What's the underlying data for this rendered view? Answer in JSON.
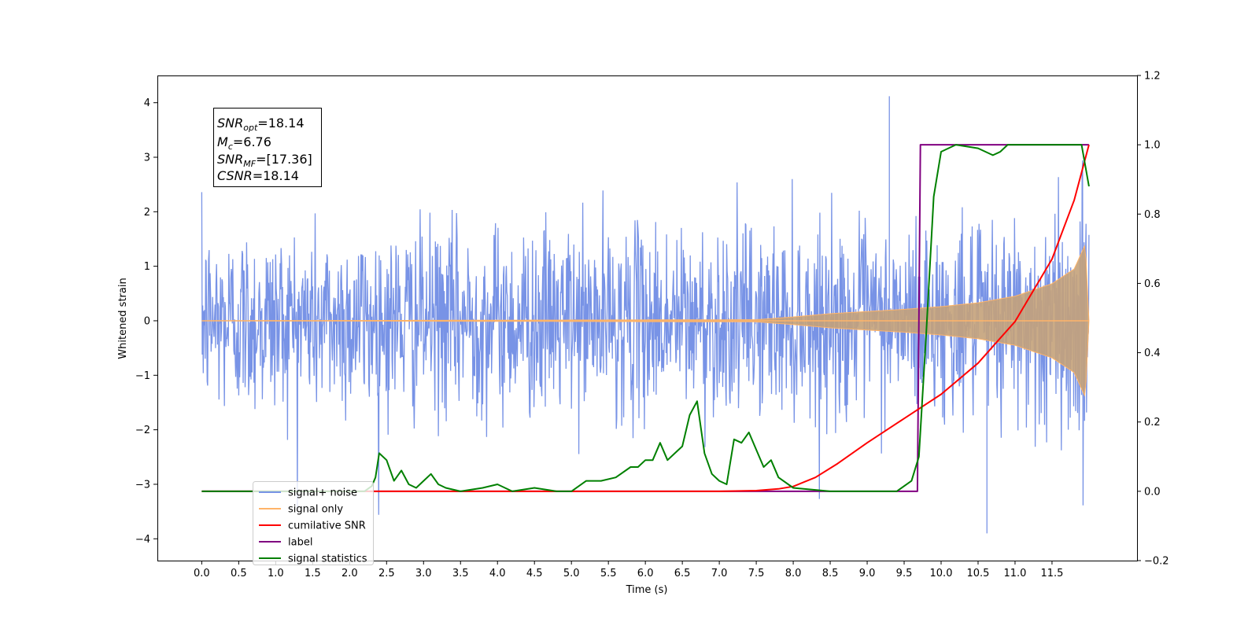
{
  "chart_data": {
    "type": "line",
    "xlabel": "Time (s)",
    "ylabel": "Whitened strain",
    "xlim": [
      -0.6,
      12.65
    ],
    "ylim": [
      -4.4,
      4.5
    ],
    "ylim_right": [
      -0.2,
      1.2
    ],
    "x_ticks": [
      "0.0",
      "0.5",
      "1.0",
      "1.5",
      "2.0",
      "2.5",
      "3.0",
      "3.5",
      "4.0",
      "4.5",
      "5.0",
      "5.5",
      "6.0",
      "6.5",
      "7.0",
      "7.5",
      "8.0",
      "8.5",
      "9.0",
      "9.5",
      "10.0",
      "10.5",
      "11.0",
      "11.5"
    ],
    "y_ticks_left": [
      "−4",
      "−3",
      "−2",
      "−1",
      "0",
      "1",
      "2",
      "3",
      "4"
    ],
    "y_ticks_right": [
      "−0.2",
      "0.0",
      "0.2",
      "0.4",
      "0.6",
      "0.8",
      "1.0",
      "1.2"
    ],
    "grid": false,
    "legend_position": "lower-left",
    "annotation": {
      "snr_opt_sub": "opt",
      "snr_opt_value": "=18.14",
      "mc_sub": "c",
      "mc_value": "=6.76",
      "snr_mf_sub": "MF",
      "snr_mf_value": "=[17.36]",
      "csnr_value": "=18.14",
      "snr_base": "SNR",
      "m_base": "M",
      "csnr_base": "CSNR"
    },
    "series": [
      {
        "name": "signal+ noise",
        "axis": "left",
        "color": "#7893e6",
        "description_noise_std": 0.85,
        "x_range": [
          0.0,
          12.0
        ],
        "peak_values": [
          4.12,
          -3.9
        ]
      },
      {
        "name": "signal only",
        "axis": "left",
        "color": "#ffb469",
        "envelope_x": [
          0.0,
          7.5,
          8.0,
          8.5,
          9.0,
          9.5,
          10.0,
          10.5,
          11.0,
          11.5,
          11.8,
          11.95,
          12.0
        ],
        "envelope_amp": [
          0.0,
          0.02,
          0.07,
          0.13,
          0.17,
          0.21,
          0.26,
          0.33,
          0.45,
          0.68,
          0.95,
          1.4,
          0.0
        ]
      },
      {
        "name": "cumilative SNR",
        "axis": "right",
        "color": "#ff0000",
        "x": [
          0.0,
          7.0,
          7.5,
          7.8,
          8.0,
          8.3,
          8.6,
          9.0,
          9.5,
          10.0,
          10.5,
          11.0,
          11.5,
          11.8,
          12.0
        ],
        "values": [
          0.0,
          0.0,
          0.002,
          0.007,
          0.014,
          0.04,
          0.08,
          0.14,
          0.21,
          0.28,
          0.37,
          0.49,
          0.67,
          0.84,
          1.0
        ]
      },
      {
        "name": "label",
        "axis": "right",
        "color": "#800080",
        "x": [
          0.0,
          9.68,
          9.72,
          12.0
        ],
        "values": [
          0.0,
          0.0,
          1.0,
          1.0
        ]
      },
      {
        "name": "signal statistics",
        "axis": "right",
        "color": "#008000",
        "x": [
          0.0,
          2.2,
          2.3,
          2.35,
          2.4,
          2.5,
          2.6,
          2.7,
          2.8,
          2.9,
          3.0,
          3.1,
          3.2,
          3.3,
          3.5,
          3.8,
          4.0,
          4.2,
          4.5,
          4.8,
          5.0,
          5.2,
          5.4,
          5.6,
          5.8,
          5.9,
          6.0,
          6.1,
          6.2,
          6.3,
          6.4,
          6.5,
          6.6,
          6.7,
          6.8,
          6.9,
          7.0,
          7.1,
          7.2,
          7.3,
          7.4,
          7.5,
          7.6,
          7.7,
          7.8,
          8.0,
          8.5,
          9.0,
          9.4,
          9.6,
          9.7,
          9.8,
          9.9,
          10.0,
          10.2,
          10.5,
          10.7,
          10.8,
          10.9,
          11.0,
          11.5,
          11.9,
          12.0
        ],
        "values": [
          0.0,
          0.0,
          0.015,
          0.04,
          0.11,
          0.09,
          0.03,
          0.06,
          0.02,
          0.01,
          0.03,
          0.05,
          0.02,
          0.01,
          0.0,
          0.01,
          0.02,
          0.0,
          0.01,
          0.0,
          0.0,
          0.03,
          0.03,
          0.04,
          0.07,
          0.07,
          0.09,
          0.09,
          0.14,
          0.09,
          0.11,
          0.13,
          0.22,
          0.26,
          0.11,
          0.05,
          0.03,
          0.02,
          0.15,
          0.14,
          0.17,
          0.12,
          0.07,
          0.09,
          0.04,
          0.01,
          0.0,
          0.0,
          0.0,
          0.03,
          0.1,
          0.46,
          0.85,
          0.98,
          1.0,
          0.99,
          0.97,
          0.98,
          1.0,
          1.0,
          1.0,
          1.0,
          0.88
        ]
      }
    ]
  }
}
